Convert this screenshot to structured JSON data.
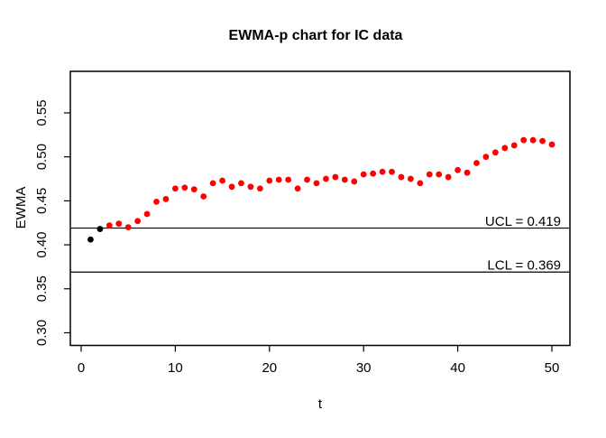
{
  "chart_data": {
    "type": "scatter",
    "title": "EWMA-p chart for IC data",
    "xlabel": "t",
    "ylabel": "EWMA",
    "x": [
      1,
      2,
      3,
      4,
      5,
      6,
      7,
      8,
      9,
      10,
      11,
      12,
      13,
      14,
      15,
      16,
      17,
      18,
      19,
      20,
      21,
      22,
      23,
      24,
      25,
      26,
      27,
      28,
      29,
      30,
      31,
      32,
      33,
      34,
      35,
      36,
      37,
      38,
      39,
      40,
      41,
      42,
      43,
      44,
      45,
      46,
      47,
      48,
      49,
      50
    ],
    "values": [
      0.406,
      0.418,
      0.422,
      0.424,
      0.42,
      0.427,
      0.435,
      0.449,
      0.452,
      0.464,
      0.465,
      0.463,
      0.455,
      0.47,
      0.473,
      0.466,
      0.47,
      0.466,
      0.464,
      0.473,
      0.474,
      0.474,
      0.464,
      0.474,
      0.47,
      0.475,
      0.477,
      0.474,
      0.472,
      0.48,
      0.481,
      0.483,
      0.483,
      0.477,
      0.475,
      0.47,
      0.48,
      0.48,
      0.477,
      0.485,
      0.482,
      0.493,
      0.5,
      0.505,
      0.51,
      0.513,
      0.519,
      0.519,
      0.518,
      0.514
    ],
    "point_style": {
      "default_color": "#FF0000",
      "overrides": {
        "0": "#000000",
        "1": "#000000"
      },
      "radius": 3.4
    },
    "control_limits": {
      "ucl": {
        "value": 0.419,
        "label": "UCL = 0.419"
      },
      "lcl": {
        "value": 0.369,
        "label": "LCL = 0.369"
      },
      "line_color": "#000000"
    },
    "x_ticks": {
      "values": [
        0,
        10,
        20,
        30,
        40,
        50
      ],
      "labels": [
        "0",
        "10",
        "20",
        "30",
        "40",
        "50"
      ]
    },
    "y_ticks": {
      "values": [
        0.3,
        0.35,
        0.4,
        0.45,
        0.5,
        0.55
      ],
      "labels": [
        "0.30",
        "0.35",
        "0.40",
        "0.45",
        "0.50",
        "0.55"
      ]
    },
    "xlim": [
      -1.149,
      51.916
    ],
    "ylim": [
      0.2856,
      0.5972
    ],
    "grid": false,
    "legend": null,
    "colors": {
      "axis": "#000000",
      "background": "#FFFFFF"
    }
  }
}
